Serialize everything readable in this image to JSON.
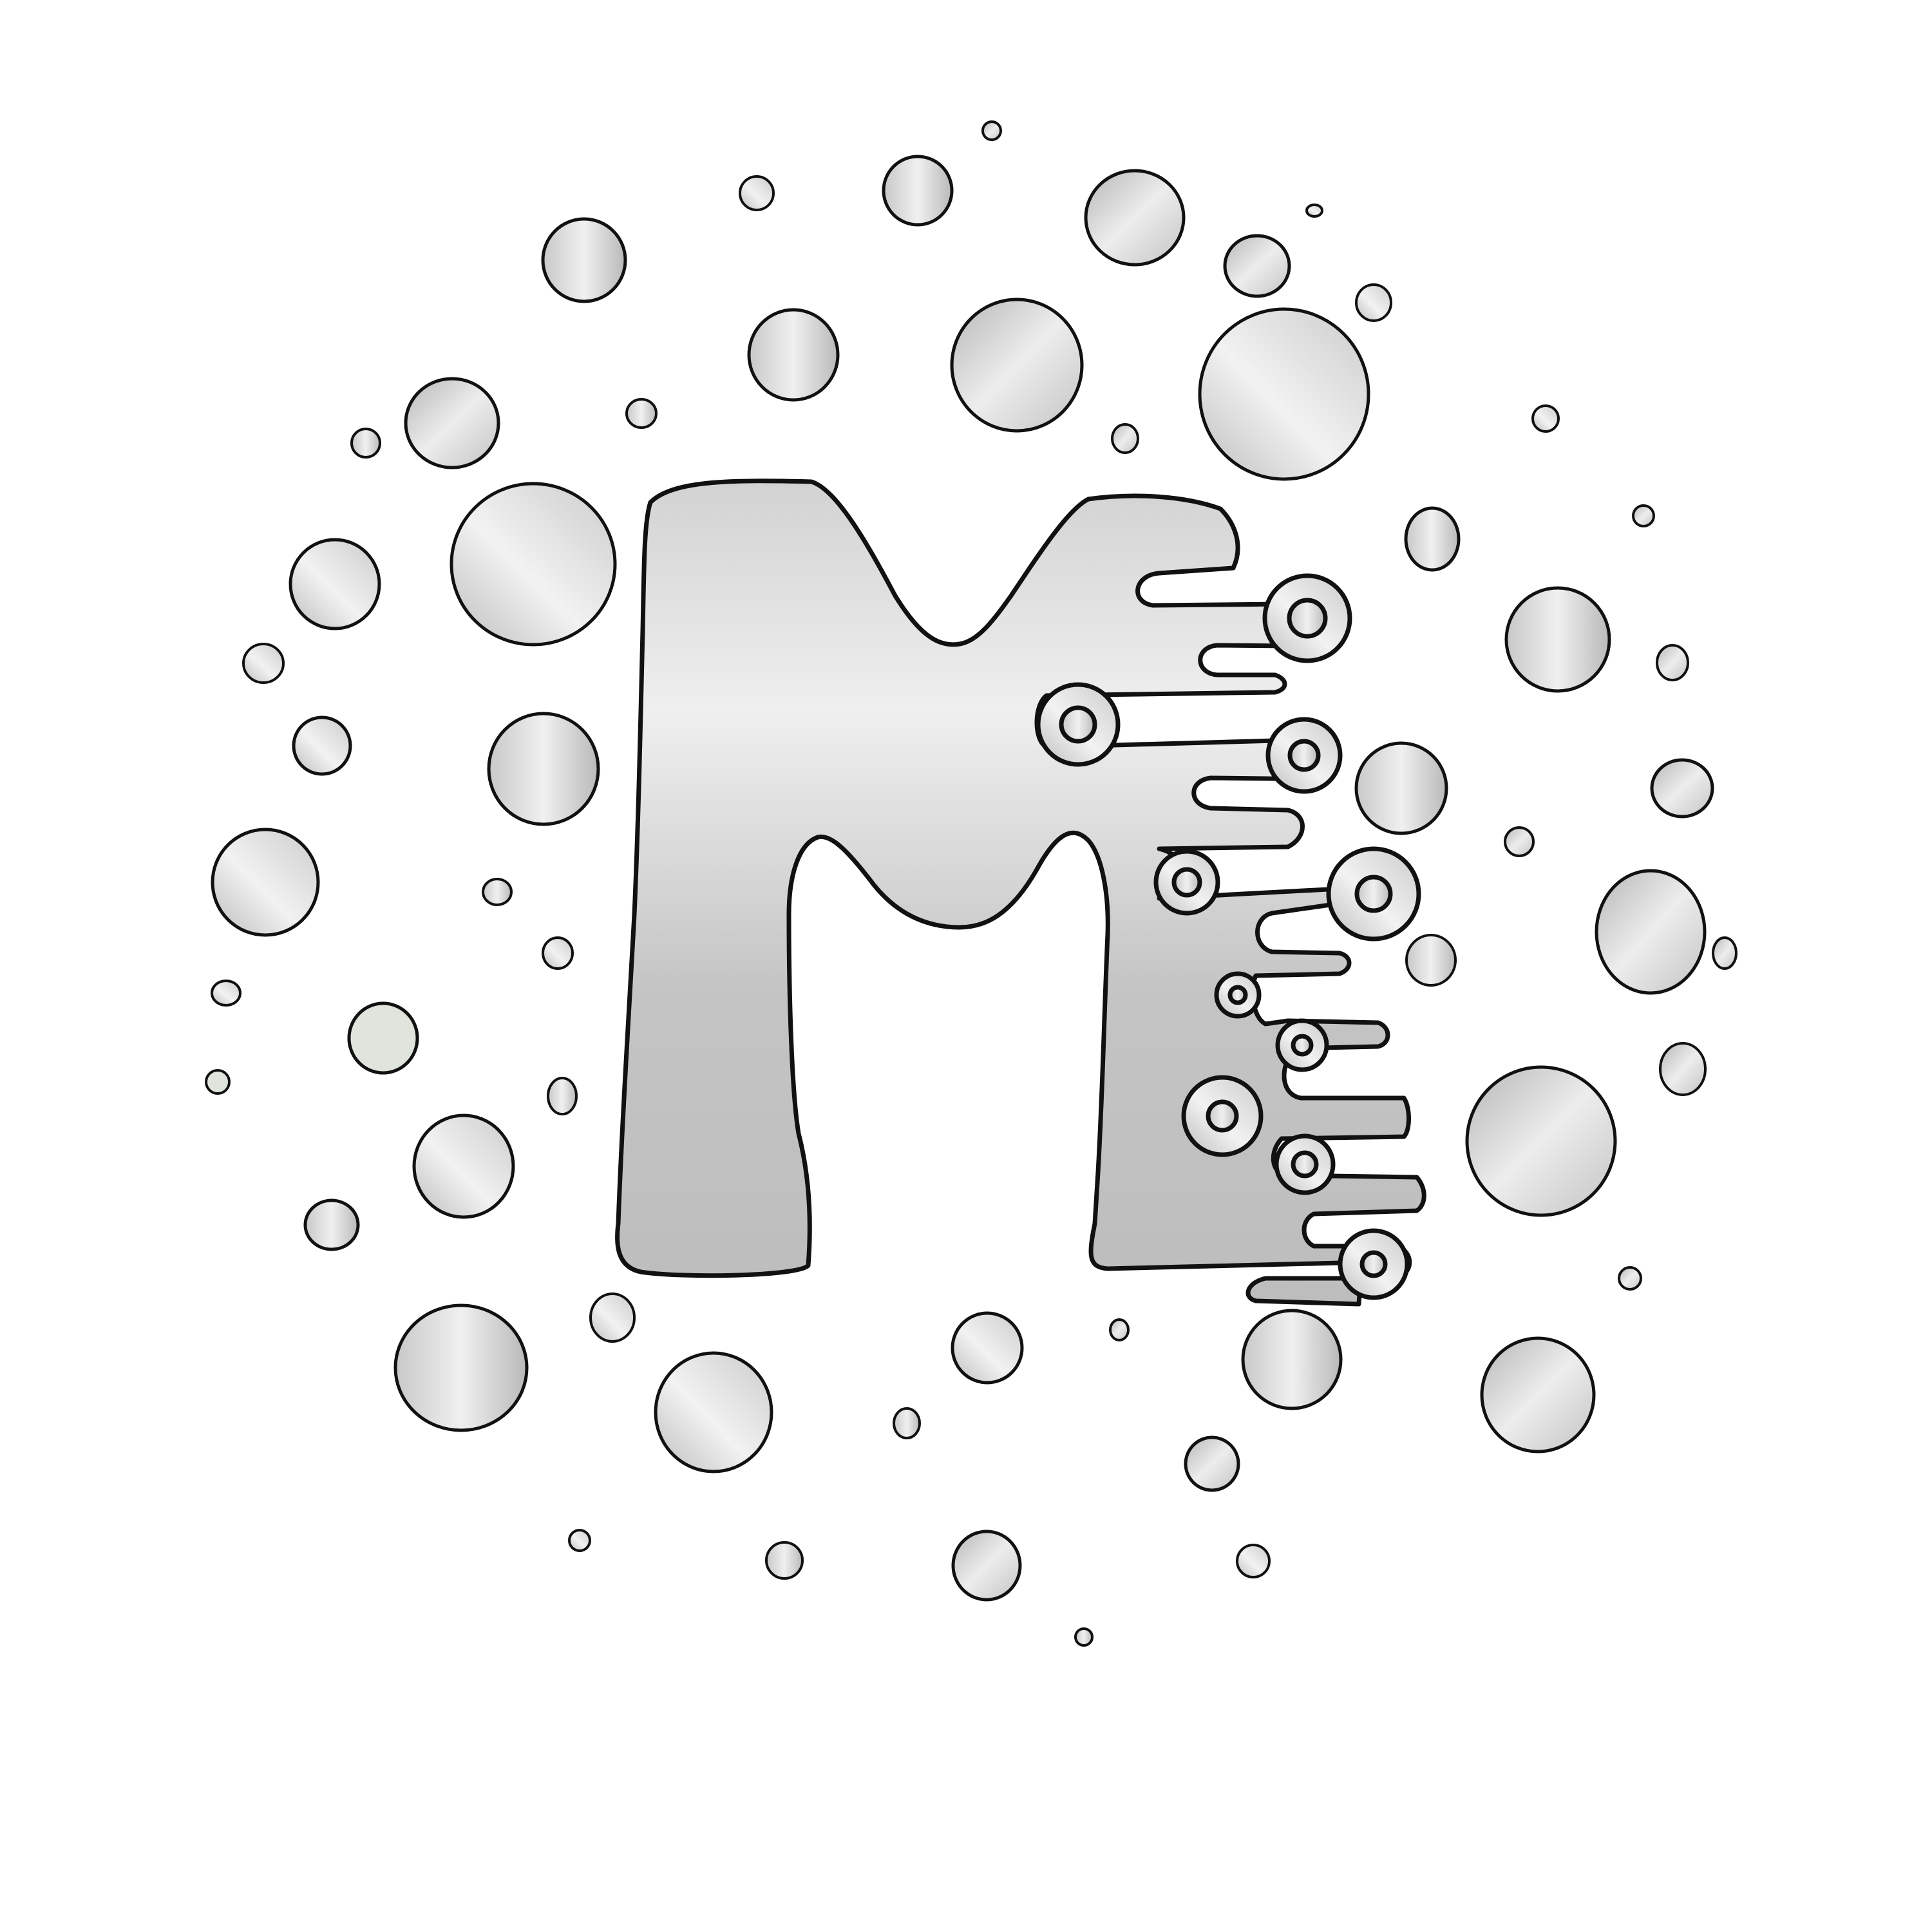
{
  "logo": {
    "letter": "M",
    "motif": "bubbles-and-circuit-traces"
  },
  "colors": {
    "background": "#ffffff",
    "outline": "#111111",
    "metal_light": "#f1f1f1",
    "metal_mid": "#d6d6d6",
    "metal_dark": "#b4b4b4",
    "pale_green_bubble": "#dfe4dc"
  }
}
